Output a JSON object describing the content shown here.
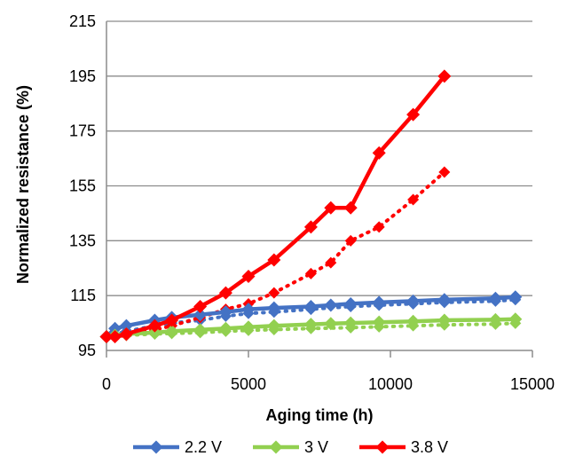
{
  "chart_data": {
    "type": "line",
    "title": "",
    "xlabel": "Aging time (h)",
    "ylabel": "Normalized resistance (%)",
    "xlim": [
      0,
      15000
    ],
    "ylim": [
      95,
      215
    ],
    "xticks": [
      "0",
      "5000",
      "10000",
      "15000"
    ],
    "yticks": [
      "95",
      "115",
      "135",
      "155",
      "175",
      "195",
      "215"
    ],
    "grid": "horizontal",
    "legend_position": "bottom",
    "series": [
      {
        "name": "2.2 V",
        "color": "#4472C4",
        "marker": "diamond",
        "line": "solid",
        "x": [
          0,
          300,
          700,
          1700,
          2300,
          3300,
          4200,
          5000,
          5900,
          7200,
          7900,
          8600,
          9600,
          10800,
          11900,
          13700,
          14400
        ],
        "y": [
          100,
          103,
          104,
          106,
          107,
          108,
          109,
          110,
          110.5,
          111,
          111.5,
          112,
          112.5,
          113,
          113.5,
          114,
          114.5
        ]
      },
      {
        "name": "2.2 V (dotted)",
        "color": "#4472C4",
        "marker": "diamond",
        "line": "dotted",
        "x": [
          0,
          700,
          1700,
          2300,
          3300,
          4200,
          5000,
          5900,
          7200,
          8600,
          9600,
          10800,
          11900,
          13700,
          14400
        ],
        "y": [
          100,
          102,
          104,
          105,
          106,
          107.5,
          108.5,
          109,
          110,
          111,
          111.5,
          112,
          112.5,
          113,
          113.5
        ]
      },
      {
        "name": "3 V",
        "color": "#92D050",
        "marker": "diamond",
        "line": "solid",
        "x": [
          0,
          300,
          700,
          1700,
          2300,
          3300,
          4200,
          5000,
          5900,
          7200,
          7900,
          8600,
          9600,
          10800,
          11900,
          13700,
          14400
        ],
        "y": [
          100,
          100.5,
          101,
          101.5,
          102,
          102.5,
          103,
          103.5,
          104,
          104.5,
          104.8,
          105,
          105.3,
          105.6,
          106,
          106.2,
          106.4
        ]
      },
      {
        "name": "3 V (dotted)",
        "color": "#92D050",
        "marker": "diamond",
        "line": "dotted",
        "x": [
          0,
          700,
          1700,
          2300,
          3300,
          4200,
          5000,
          5900,
          7200,
          8600,
          9600,
          10800,
          11900,
          13700,
          14400
        ],
        "y": [
          100,
          100.5,
          101,
          101.2,
          101.5,
          102,
          102.3,
          102.6,
          103,
          103.3,
          103.6,
          104,
          104.3,
          104.6,
          104.9
        ]
      },
      {
        "name": "3.8 V",
        "color": "#FF0000",
        "marker": "diamond",
        "line": "solid",
        "x": [
          0,
          300,
          700,
          1700,
          2300,
          3300,
          4200,
          5000,
          5900,
          7200,
          7900,
          8600,
          9600,
          10800,
          11900
        ],
        "y": [
          100,
          100,
          101,
          104,
          106,
          111,
          116,
          122,
          128,
          140,
          147,
          147,
          167,
          181,
          195
        ]
      },
      {
        "name": "3.8 V (dotted)",
        "color": "#FF0000",
        "marker": "diamond",
        "line": "dotted",
        "x": [
          0,
          300,
          700,
          1700,
          2300,
          3300,
          4200,
          5000,
          5900,
          7200,
          7900,
          8600,
          9600,
          10800,
          11900
        ],
        "y": [
          100,
          100,
          100.5,
          102.5,
          104,
          107,
          110,
          112,
          116,
          123,
          127,
          135,
          140,
          150,
          160
        ]
      }
    ],
    "legend": [
      {
        "label": "2.2 V",
        "color": "#4472C4"
      },
      {
        "label": "3 V",
        "color": "#92D050"
      },
      {
        "label": "3.8 V",
        "color": "#FF0000"
      }
    ]
  }
}
